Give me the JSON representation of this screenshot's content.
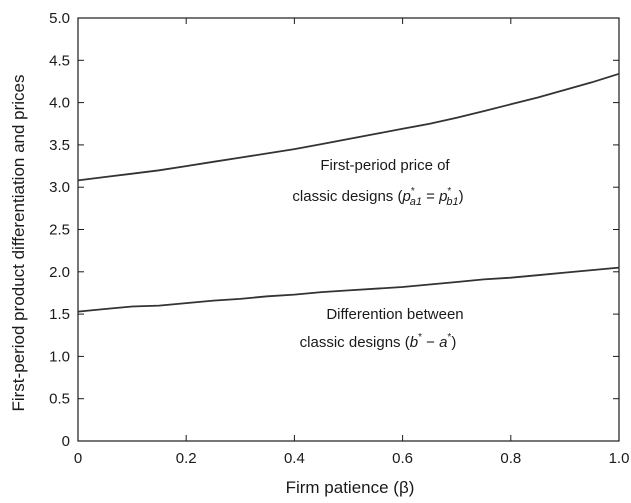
{
  "chart_data": {
    "type": "line",
    "title": "",
    "xlabel": "Firm patience (β)",
    "ylabel": "First-period product differentiation and prices",
    "xlim": [
      0,
      1
    ],
    "ylim": [
      0,
      5
    ],
    "x_ticks": [
      0,
      0.2,
      0.4,
      0.6,
      0.8,
      1.0
    ],
    "x_tick_labels": [
      "0",
      "0.2",
      "0.4",
      "0.6",
      "0.8",
      "1.0"
    ],
    "y_ticks": [
      0,
      0.5,
      1.0,
      1.5,
      2.0,
      2.5,
      3.0,
      3.5,
      4.0,
      4.5,
      5.0
    ],
    "y_tick_labels": [
      "0",
      "0.5",
      "1.0",
      "1.5",
      "2.0",
      "2.5",
      "3.0",
      "3.5",
      "4.0",
      "4.5",
      "5.0"
    ],
    "grid": false,
    "line_color": "#333333",
    "series": [
      {
        "x": [
          0,
          0.05,
          0.1,
          0.15,
          0.2,
          0.25,
          0.3,
          0.35,
          0.4,
          0.45,
          0.5,
          0.55,
          0.6,
          0.65,
          0.7,
          0.75,
          0.8,
          0.85,
          0.9,
          0.95,
          1.0
        ],
        "values": [
          3.08,
          3.12,
          3.16,
          3.2,
          3.25,
          3.3,
          3.35,
          3.4,
          3.45,
          3.51,
          3.57,
          3.63,
          3.69,
          3.75,
          3.82,
          3.9,
          3.98,
          4.06,
          4.15,
          4.24,
          4.34
        ]
      },
      {
        "x": [
          0,
          0.05,
          0.1,
          0.15,
          0.2,
          0.25,
          0.3,
          0.35,
          0.4,
          0.45,
          0.5,
          0.55,
          0.6,
          0.65,
          0.7,
          0.75,
          0.8,
          0.85,
          0.9,
          0.95,
          1.0
        ],
        "values": [
          1.53,
          1.56,
          1.59,
          1.6,
          1.63,
          1.66,
          1.68,
          1.71,
          1.73,
          1.76,
          1.78,
          1.8,
          1.82,
          1.85,
          1.88,
          1.91,
          1.93,
          1.96,
          1.99,
          2.02,
          2.05
        ]
      }
    ],
    "annotations": [
      {
        "lines": [
          "First-period  price of",
          "classic designs (p*a1 = p*b1)"
        ],
        "line1": "First-period  price of",
        "line2_pre": "classic designs (",
        "p": "p",
        "sup": "*",
        "sub_a": "a1",
        "eq": " = ",
        "sub_b": "b1",
        "close": ")"
      },
      {
        "lines": [
          "Differention between",
          "classic designs (b* − a*)"
        ],
        "line1": "Differention between",
        "line2_pre": "classic designs (",
        "b": "b",
        "sup": "*",
        "minus": " − ",
        "a": "a",
        "close": ")"
      }
    ]
  }
}
